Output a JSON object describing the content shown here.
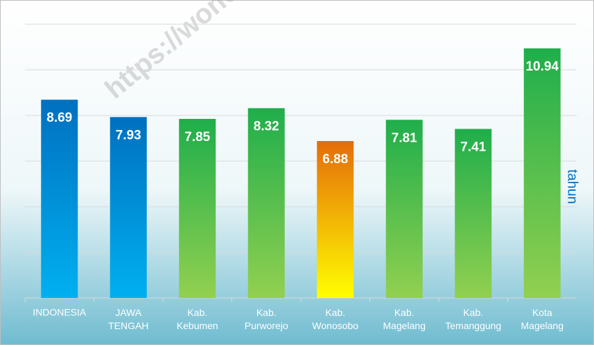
{
  "chart_data": {
    "type": "bar",
    "categories": [
      "INDONESIA",
      "JAWA TENGAH",
      "Kab. Kebumen",
      "Kab. Purworejo",
      "Kab. Wonosobo",
      "Kab. Magelang",
      "Kab. Temanggung",
      "Kota Magelang"
    ],
    "values": [
      8.69,
      7.93,
      7.85,
      8.32,
      6.88,
      7.81,
      7.41,
      10.94
    ],
    "colors": [
      [
        "#0070c0",
        "#00b0f0"
      ],
      [
        "#0070c0",
        "#00b0f0"
      ],
      [
        "#1fae4b",
        "#92d050"
      ],
      [
        "#1fae4b",
        "#92d050"
      ],
      [
        "#e46c0a",
        "#ffff00"
      ],
      [
        "#1fae4b",
        "#92d050"
      ],
      [
        "#1fae4b",
        "#92d050"
      ],
      [
        "#1fae4b",
        "#92d050"
      ]
    ],
    "y_axis_label": "tahun",
    "watermark": "https://wono",
    "ylim": [
      0,
      12
    ],
    "yticks": [
      0,
      2,
      4,
      6,
      8,
      10,
      12
    ],
    "grid": true
  }
}
